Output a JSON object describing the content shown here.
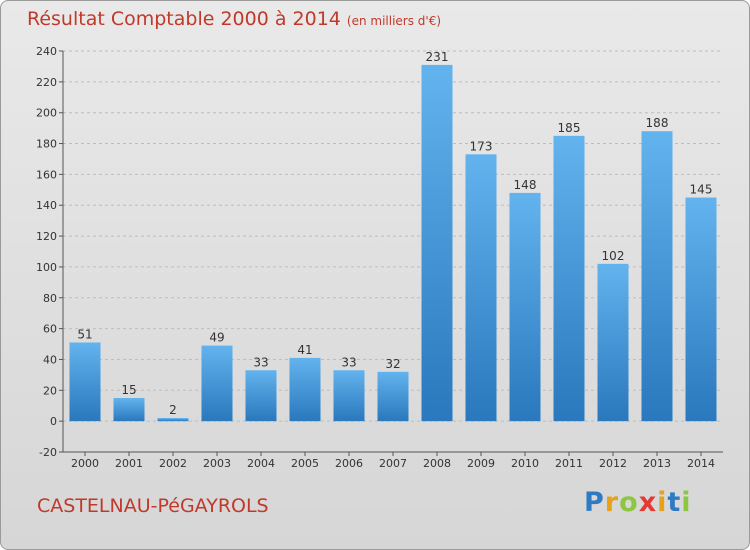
{
  "chart_data": {
    "type": "bar",
    "title": "Résultat Comptable 2000 à 2014",
    "subtitle": "(en milliers d'€)",
    "categories": [
      "2000",
      "2001",
      "2002",
      "2003",
      "2004",
      "2005",
      "2006",
      "2007",
      "2008",
      "2009",
      "2010",
      "2011",
      "2012",
      "2013",
      "2014"
    ],
    "values": [
      51,
      15,
      2,
      49,
      33,
      41,
      33,
      32,
      231,
      173,
      148,
      185,
      102,
      188,
      145
    ],
    "ylim": [
      -20,
      240
    ],
    "yticks": [
      -20,
      0,
      20,
      40,
      60,
      80,
      100,
      120,
      140,
      160,
      180,
      200,
      220,
      240
    ],
    "grid": true,
    "bar_color": "#3c8ed6",
    "title_color": "#c0392b"
  },
  "footer": {
    "commune": "CASTELNAU-PéGAYROLS",
    "logo_letters": [
      "P",
      "r",
      "o",
      "x",
      "i",
      "t",
      "i"
    ],
    "logo_colors": [
      "#2e7bc4",
      "#e8a21a",
      "#8dc63f",
      "#e53935",
      "#e8a21a",
      "#2e7bc4",
      "#8dc63f"
    ]
  }
}
